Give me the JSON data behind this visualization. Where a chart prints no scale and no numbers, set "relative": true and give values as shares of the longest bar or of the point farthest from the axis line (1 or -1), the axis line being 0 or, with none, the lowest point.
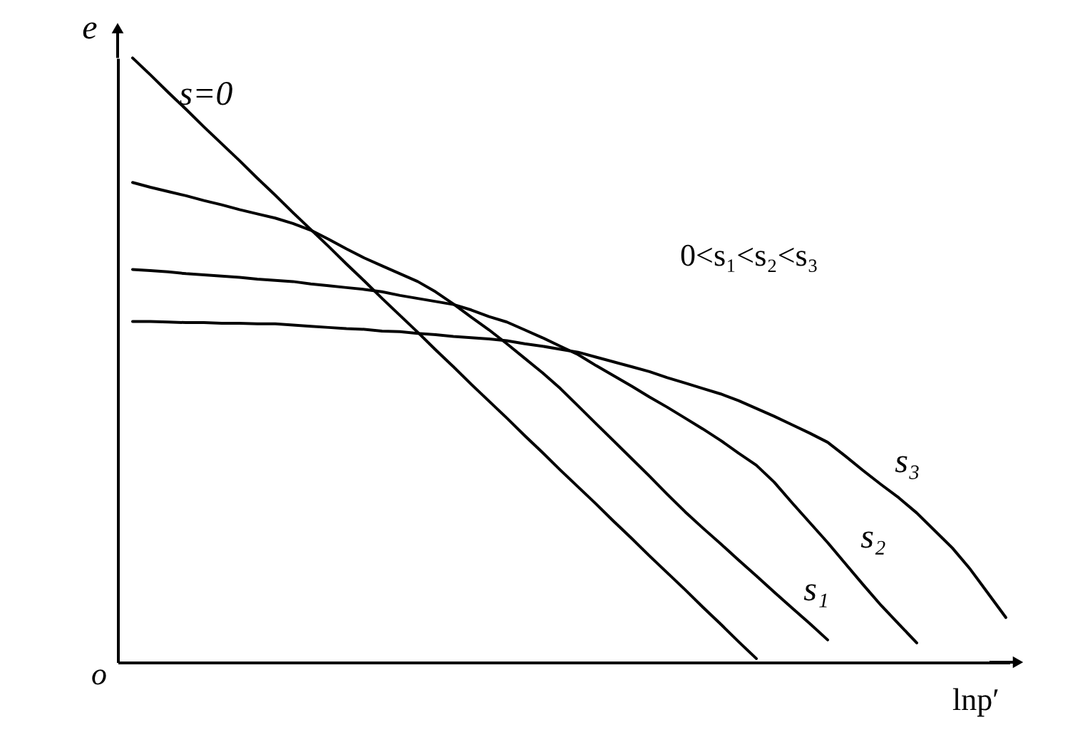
{
  "chart_data": {
    "type": "line",
    "relative": true,
    "xlabel": "lnp′",
    "ylabel": "e",
    "marker": "none",
    "line_style": "solid",
    "annotations": [
      "0<s₁<s₂<s₃",
      "o"
    ],
    "categories": [
      null,
      null,
      null,
      null,
      null,
      null,
      null,
      null,
      null,
      null,
      null,
      null,
      null,
      null,
      null,
      null,
      null,
      null,
      null,
      null,
      null,
      null,
      null,
      null,
      null,
      null,
      null,
      null,
      null,
      null,
      null,
      null,
      null,
      null,
      null,
      null,
      null,
      null,
      null,
      null,
      null,
      null,
      null,
      null,
      null,
      null,
      null,
      null,
      null,
      null
    ],
    "series": [
      {
        "name": "s=0",
        "color": "#000000",
        "values": [
          1.0,
          0.972,
          0.943,
          0.915,
          0.886,
          0.858,
          0.83,
          0.801,
          0.773,
          0.744,
          0.716,
          0.688,
          0.659,
          0.631,
          0.602,
          0.574,
          0.546,
          0.517,
          0.489,
          0.46,
          0.432,
          0.404,
          0.375,
          0.347,
          0.318,
          0.29,
          0.262,
          0.233,
          0.205,
          0.176,
          0.148,
          0.12,
          0.091,
          0.063,
          0.034,
          0.006,
          null,
          null,
          null,
          null,
          null,
          null,
          null,
          null,
          null,
          null,
          null,
          null,
          null,
          null
        ]
      },
      {
        "name": "s₁",
        "color": "#000000",
        "values": [
          0.794,
          0.786,
          0.779,
          0.772,
          0.764,
          0.757,
          0.749,
          0.742,
          0.735,
          0.726,
          0.715,
          0.7,
          0.684,
          0.669,
          0.656,
          0.643,
          0.63,
          0.613,
          0.593,
          0.571,
          0.55,
          0.527,
          0.503,
          0.479,
          0.453,
          0.424,
          0.395,
          0.366,
          0.337,
          0.308,
          0.278,
          0.249,
          0.222,
          0.196,
          0.169,
          0.143,
          0.116,
          0.09,
          0.064,
          0.037,
          null,
          null,
          null,
          null,
          null,
          null,
          null,
          null,
          null,
          null
        ]
      },
      {
        "name": "s₂",
        "color": "#000000",
        "values": [
          0.65,
          0.648,
          0.646,
          0.643,
          0.641,
          0.639,
          0.637,
          0.634,
          0.632,
          0.63,
          0.626,
          0.623,
          0.62,
          0.617,
          0.613,
          0.607,
          0.602,
          0.597,
          0.592,
          0.583,
          0.572,
          0.563,
          0.55,
          0.537,
          0.523,
          0.509,
          0.491,
          0.474,
          0.457,
          0.439,
          0.422,
          0.404,
          0.386,
          0.367,
          0.346,
          0.326,
          0.298,
          0.264,
          0.231,
          0.198,
          0.163,
          0.128,
          0.094,
          0.063,
          0.032,
          null,
          null,
          null,
          null,
          null
        ]
      },
      {
        "name": "s₃",
        "color": "#000000",
        "values": [
          0.564,
          0.564,
          0.563,
          0.562,
          0.562,
          0.561,
          0.561,
          0.56,
          0.56,
          0.558,
          0.556,
          0.554,
          0.552,
          0.551,
          0.548,
          0.547,
          0.544,
          0.542,
          0.539,
          0.537,
          0.535,
          0.532,
          0.527,
          0.523,
          0.518,
          0.513,
          0.505,
          0.497,
          0.489,
          0.481,
          0.471,
          0.462,
          0.453,
          0.444,
          0.433,
          0.42,
          0.407,
          0.393,
          0.379,
          0.364,
          0.341,
          0.317,
          0.294,
          0.272,
          0.247,
          0.218,
          0.189,
          0.154,
          0.114,
          0.074
        ]
      }
    ]
  }
}
